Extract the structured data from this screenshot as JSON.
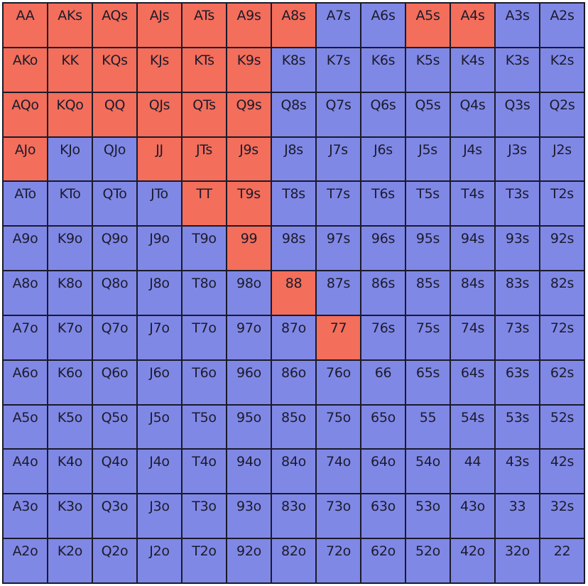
{
  "colors": {
    "raise": "#f36e5b",
    "fold": "#8088e6"
  },
  "grid": {
    "rows": [
      [
        "AA",
        "AKs",
        "AQs",
        "AJs",
        "ATs",
        "A9s",
        "A8s",
        "A7s",
        "A6s",
        "A5s",
        "A4s",
        "A3s",
        "A2s"
      ],
      [
        "AKo",
        "KK",
        "KQs",
        "KJs",
        "KTs",
        "K9s",
        "K8s",
        "K7s",
        "K6s",
        "K5s",
        "K4s",
        "K3s",
        "K2s"
      ],
      [
        "AQo",
        "KQo",
        "QQ",
        "QJs",
        "QTs",
        "Q9s",
        "Q8s",
        "Q7s",
        "Q6s",
        "Q5s",
        "Q4s",
        "Q3s",
        "Q2s"
      ],
      [
        "AJo",
        "KJo",
        "QJo",
        "JJ",
        "JTs",
        "J9s",
        "J8s",
        "J7s",
        "J6s",
        "J5s",
        "J4s",
        "J3s",
        "J2s"
      ],
      [
        "ATo",
        "KTo",
        "QTo",
        "JTo",
        "TT",
        "T9s",
        "T8s",
        "T7s",
        "T6s",
        "T5s",
        "T4s",
        "T3s",
        "T2s"
      ],
      [
        "A9o",
        "K9o",
        "Q9o",
        "J9o",
        "T9o",
        "99",
        "98s",
        "97s",
        "96s",
        "95s",
        "94s",
        "93s",
        "92s"
      ],
      [
        "A8o",
        "K8o",
        "Q8o",
        "J8o",
        "T8o",
        "98o",
        "88",
        "87s",
        "86s",
        "85s",
        "84s",
        "83s",
        "82s"
      ],
      [
        "A7o",
        "K7o",
        "Q7o",
        "J7o",
        "T7o",
        "97o",
        "87o",
        "77",
        "76s",
        "75s",
        "74s",
        "73s",
        "72s"
      ],
      [
        "A6o",
        "K6o",
        "Q6o",
        "J6o",
        "T6o",
        "96o",
        "86o",
        "76o",
        "66",
        "65s",
        "64s",
        "63s",
        "62s"
      ],
      [
        "A5o",
        "K5o",
        "Q5o",
        "J5o",
        "T5o",
        "95o",
        "85o",
        "75o",
        "65o",
        "55",
        "54s",
        "53s",
        "52s"
      ],
      [
        "A4o",
        "K4o",
        "Q4o",
        "J4o",
        "T4o",
        "94o",
        "84o",
        "74o",
        "64o",
        "54o",
        "44",
        "43s",
        "42s"
      ],
      [
        "A3o",
        "K3o",
        "Q3o",
        "J3o",
        "T3o",
        "93o",
        "83o",
        "73o",
        "63o",
        "53o",
        "43o",
        "33",
        "32s"
      ],
      [
        "A2o",
        "K2o",
        "Q2o",
        "J2o",
        "T2o",
        "92o",
        "82o",
        "72o",
        "62o",
        "52o",
        "42o",
        "32o",
        "22"
      ]
    ],
    "highlighted": [
      "AA",
      "AKs",
      "AQs",
      "AJs",
      "ATs",
      "A9s",
      "A8s",
      "A5s",
      "A4s",
      "AKo",
      "KK",
      "KQs",
      "KJs",
      "KTs",
      "K9s",
      "AQo",
      "KQo",
      "QQ",
      "QJs",
      "QTs",
      "Q9s",
      "AJo",
      "JJ",
      "JTs",
      "J9s",
      "TT",
      "T9s",
      "99",
      "88",
      "77"
    ]
  }
}
